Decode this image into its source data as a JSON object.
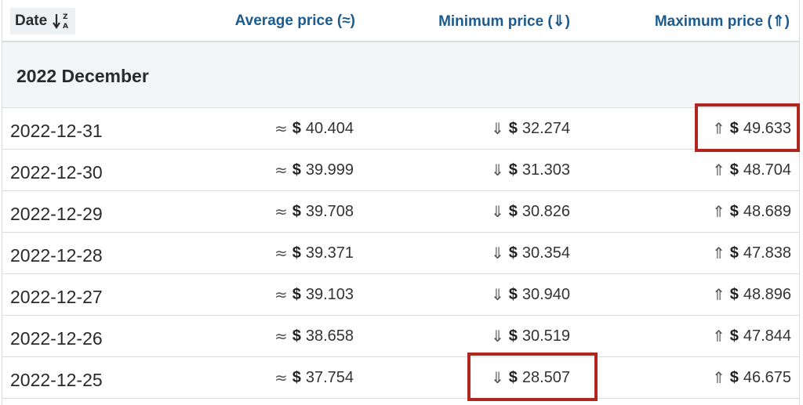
{
  "header": {
    "date_label": "Date",
    "avg_label": "Average price (≈)",
    "min_label": "Minimum price (⇓)",
    "max_label": "Maximum price (⇑)"
  },
  "group": {
    "title": "2022 December"
  },
  "symbols": {
    "avg": "≈",
    "min": "⇓",
    "max": "⇑",
    "currency": "$"
  },
  "rows": [
    {
      "date": "2022-12-31",
      "avg": "40.404",
      "min": "32.274",
      "max": "49.633"
    },
    {
      "date": "2022-12-30",
      "avg": "39.999",
      "min": "31.303",
      "max": "48.704"
    },
    {
      "date": "2022-12-29",
      "avg": "39.708",
      "min": "30.826",
      "max": "48.689"
    },
    {
      "date": "2022-12-28",
      "avg": "39.371",
      "min": "30.354",
      "max": "47.838"
    },
    {
      "date": "2022-12-27",
      "avg": "39.103",
      "min": "30.940",
      "max": "48.896"
    },
    {
      "date": "2022-12-26",
      "avg": "38.658",
      "min": "30.519",
      "max": "47.844"
    },
    {
      "date": "2022-12-25",
      "avg": "37.754",
      "min": "28.507",
      "max": "46.675"
    }
  ],
  "colors": {
    "header_link": "#1b5b8f",
    "highlight_border": "#b0261e",
    "group_background": "#f4f5f6"
  }
}
